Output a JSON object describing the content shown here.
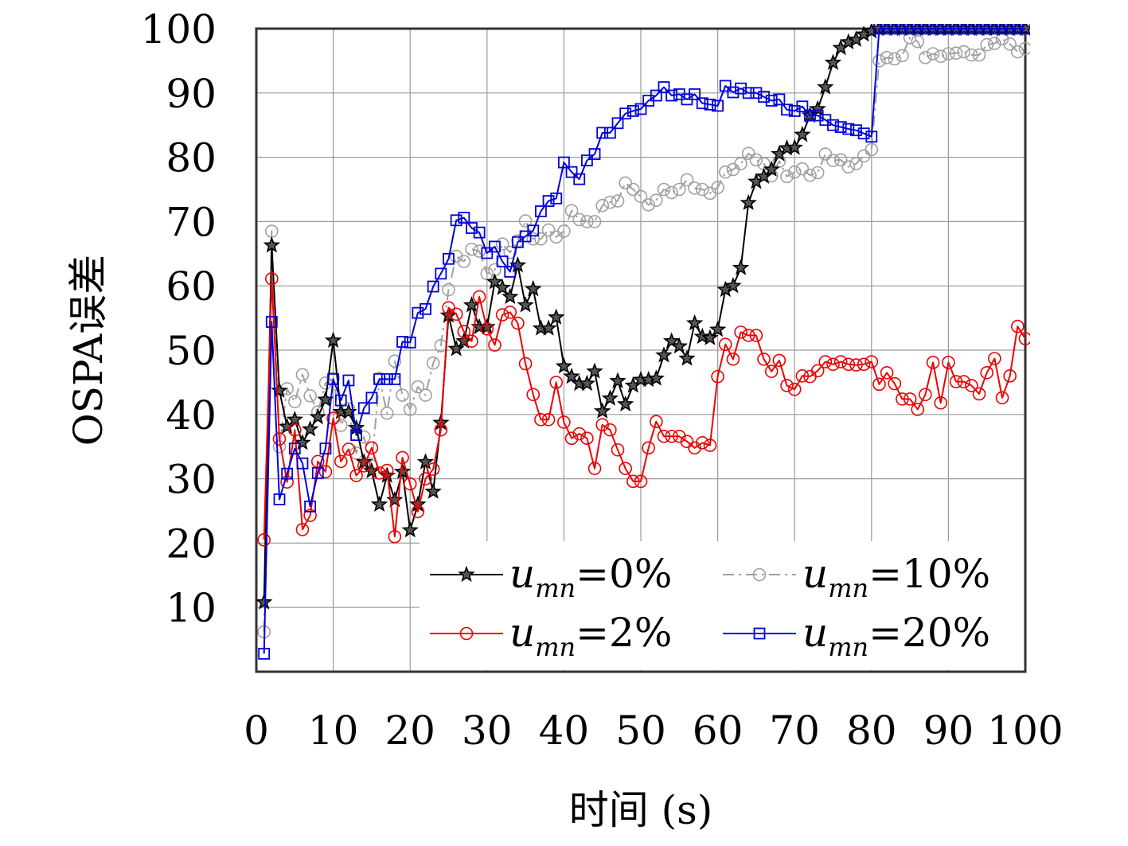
{
  "chart_data": {
    "type": "line",
    "title": "",
    "xlabel": "时间 (s)",
    "ylabel": "OSPA误差",
    "xlim": [
      0,
      100
    ],
    "ylim": [
      0,
      100
    ],
    "xticks": [
      "0",
      "10",
      "20",
      "30",
      "40",
      "50",
      "60",
      "70",
      "80",
      "90",
      "100"
    ],
    "yticks": [
      "10",
      "20",
      "30",
      "40",
      "50",
      "60",
      "70",
      "80",
      "90",
      "100"
    ],
    "grid": true,
    "legend_position": "bottom-right",
    "series": [
      {
        "name": "u_mn=0%",
        "legend": {
          "base": "u",
          "sub": "mn",
          "value": "=0%"
        },
        "color": "#000000",
        "marker": "star",
        "dash": "solid",
        "x": [
          1,
          2,
          3,
          4,
          5,
          6,
          7,
          8,
          9,
          10,
          11,
          12,
          13,
          14,
          15,
          16,
          17,
          18,
          19,
          20,
          21,
          22,
          23,
          24,
          25,
          26,
          27,
          28,
          29,
          30,
          31,
          32,
          33,
          34,
          35,
          36,
          37,
          38,
          39,
          40,
          41,
          42,
          43,
          44,
          45,
          46,
          47,
          48,
          49,
          50,
          51,
          52,
          53,
          54,
          55,
          56,
          57,
          58,
          59,
          60,
          61,
          62,
          63,
          64,
          65,
          66,
          67,
          68,
          69,
          70,
          71,
          72,
          73,
          74,
          75,
          76,
          77,
          78,
          79,
          80,
          81,
          82,
          83,
          84,
          85,
          86,
          87,
          88,
          89,
          90,
          91,
          92,
          93,
          94,
          95,
          96,
          97,
          98,
          99,
          100
        ],
        "y": [
          10.8,
          66.3,
          43.7,
          38.1,
          39.2,
          35.6,
          37.7,
          39.6,
          42.3,
          51.5,
          40.4,
          40.4,
          37.9,
          32.6,
          31.2,
          26.0,
          30.5,
          26.7,
          31.1,
          22.0,
          26.0,
          32.6,
          28.0,
          38.7,
          55.4,
          50.2,
          51.4,
          57.0,
          53.6,
          53.6,
          60.6,
          59.7,
          58.3,
          63.2,
          57.0,
          59.5,
          53.4,
          53.4,
          55.1,
          47.5,
          45.9,
          44.8,
          44.8,
          46.7,
          40.5,
          42.5,
          45.2,
          41.6,
          44.5,
          45.4,
          45.4,
          45.6,
          49.2,
          51.4,
          50.6,
          48.7,
          54.2,
          52.1,
          51.9,
          53.2,
          59.4,
          60.0,
          62.8,
          72.9,
          76.2,
          77.0,
          78.1,
          80.5,
          81.4,
          81.5,
          83.5,
          86.5,
          87.5,
          90.9,
          94.7,
          97.0,
          97.9,
          98.3,
          99.1,
          99.6,
          100,
          100,
          100,
          100,
          100,
          100,
          100,
          100,
          100,
          100,
          100,
          100,
          100,
          100,
          100,
          100,
          100,
          100,
          100,
          100
        ]
      },
      {
        "name": "u_mn=2%",
        "legend": {
          "base": "u",
          "sub": "mn",
          "value": "=2%"
        },
        "color": "#ee0000",
        "marker": "circle",
        "dash": "solid",
        "x": [
          1,
          2,
          3,
          4,
          5,
          6,
          7,
          8,
          9,
          10,
          11,
          12,
          13,
          14,
          15,
          16,
          17,
          18,
          19,
          20,
          21,
          22,
          23,
          24,
          25,
          26,
          27,
          28,
          29,
          30,
          31,
          32,
          33,
          34,
          35,
          36,
          37,
          38,
          39,
          40,
          41,
          42,
          43,
          44,
          45,
          46,
          47,
          48,
          49,
          50,
          51,
          52,
          53,
          54,
          55,
          56,
          57,
          58,
          59,
          60,
          61,
          62,
          63,
          64,
          65,
          66,
          67,
          68,
          69,
          70,
          71,
          72,
          73,
          74,
          75,
          76,
          77,
          78,
          79,
          80,
          81,
          82,
          83,
          84,
          85,
          86,
          87,
          88,
          89,
          90,
          91,
          92,
          93,
          94,
          95,
          96,
          97,
          98,
          99,
          100
        ],
        "y": [
          20.5,
          61.1,
          36.2,
          29.5,
          37.6,
          22.1,
          24.3,
          32.7,
          31.1,
          39.4,
          32.7,
          34.6,
          30.5,
          32.0,
          34.8,
          30.9,
          31.3,
          21.0,
          33.3,
          29.2,
          24.9,
          30.0,
          31.5,
          37.6,
          56.6,
          55.6,
          52.9,
          51.4,
          58.3,
          53.3,
          50.8,
          55.5,
          55.9,
          54.2,
          47.9,
          43.1,
          39.2,
          39.2,
          45.0,
          38.8,
          36.3,
          37.0,
          36.3,
          31.6,
          38.4,
          37.6,
          34.5,
          31.6,
          29.6,
          29.6,
          34.8,
          38.9,
          36.6,
          36.6,
          36.6,
          35.8,
          34.8,
          35.6,
          35.2,
          45.9,
          50.9,
          48.6,
          52.8,
          52.3,
          52.3,
          48.6,
          46.7,
          48.4,
          44.5,
          43.9,
          46.0,
          45.9,
          46.8,
          48.2,
          47.8,
          48.2,
          47.8,
          47.7,
          47.8,
          48.2,
          44.7,
          46.5,
          44.8,
          42.4,
          42.4,
          40.8,
          43.1,
          48.1,
          41.8,
          48.1,
          45.1,
          45.1,
          44.5,
          43.2,
          46.5,
          48.7,
          42.6,
          46.0,
          53.7,
          51.8
        ]
      },
      {
        "name": "u_mn=10%",
        "legend": {
          "base": "u",
          "sub": "mn",
          "value": "=10%"
        },
        "color": "#a0a0a0",
        "marker": "circle",
        "dash": "dashdot",
        "x": [
          1,
          2,
          3,
          4,
          5,
          6,
          7,
          8,
          9,
          10,
          11,
          12,
          13,
          14,
          15,
          16,
          17,
          18,
          19,
          20,
          21,
          22,
          23,
          24,
          25,
          26,
          27,
          28,
          29,
          30,
          31,
          32,
          33,
          34,
          35,
          36,
          37,
          38,
          39,
          40,
          41,
          42,
          43,
          44,
          45,
          46,
          47,
          48,
          49,
          50,
          51,
          52,
          53,
          54,
          55,
          56,
          57,
          58,
          59,
          60,
          61,
          62,
          63,
          64,
          65,
          66,
          67,
          68,
          69,
          70,
          71,
          72,
          73,
          74,
          75,
          76,
          77,
          78,
          79,
          80,
          81,
          82,
          83,
          84,
          85,
          86,
          87,
          88,
          89,
          90,
          91,
          92,
          93,
          94,
          95,
          96,
          97,
          98,
          99,
          100
        ],
        "y": [
          6.2,
          68.5,
          35.0,
          44.0,
          42.0,
          46.2,
          42.9,
          40.4,
          44.9,
          45.6,
          38.3,
          40.9,
          34.0,
          36.5,
          32.0,
          45.6,
          40.2,
          48.3,
          43.0,
          40.8,
          44.3,
          43.0,
          48.0,
          50.7,
          59.4,
          64.6,
          63.8,
          65.7,
          65.4,
          61.9,
          62.5,
          66.5,
          65.2,
          67.0,
          70.1,
          67.3,
          67.3,
          68.7,
          67.6,
          68.5,
          71.7,
          70.3,
          70.0,
          70.0,
          72.5,
          73.0,
          73.2,
          76.0,
          75.0,
          73.9,
          72.6,
          73.3,
          75.0,
          74.5,
          75.0,
          76.5,
          75.2,
          75.0,
          74.4,
          75.3,
          77.7,
          78.1,
          79.0,
          80.6,
          79.6,
          79.0,
          77.1,
          79.4,
          77.0,
          77.7,
          78.2,
          77.2,
          77.6,
          80.5,
          79.5,
          79.6,
          78.5,
          79.0,
          80.2,
          81.2,
          95.0,
          95.5,
          95.3,
          95.8,
          98.6,
          98.0,
          95.5,
          96.1,
          95.7,
          96.1,
          96.2,
          96.4,
          95.9,
          95.9,
          97.5,
          97.7,
          98.4,
          97.6,
          96.4,
          96.9
        ]
      },
      {
        "name": "u_mn=20%",
        "legend": {
          "base": "u",
          "sub": "mn",
          "value": "=20%"
        },
        "color": "#0000dd",
        "marker": "square",
        "dash": "solid",
        "x": [
          1,
          2,
          3,
          4,
          5,
          6,
          7,
          8,
          9,
          10,
          11,
          12,
          13,
          14,
          15,
          16,
          17,
          18,
          19,
          20,
          21,
          22,
          23,
          24,
          25,
          26,
          27,
          28,
          29,
          30,
          31,
          32,
          33,
          34,
          35,
          36,
          37,
          38,
          39,
          40,
          41,
          42,
          43,
          44,
          45,
          46,
          47,
          48,
          49,
          50,
          51,
          52,
          53,
          54,
          55,
          56,
          57,
          58,
          59,
          60,
          61,
          62,
          63,
          64,
          65,
          66,
          67,
          68,
          69,
          70,
          71,
          72,
          73,
          74,
          75,
          76,
          77,
          78,
          79,
          80,
          81,
          82,
          83,
          84,
          85,
          86,
          87,
          88,
          89,
          90,
          91,
          92,
          93,
          94,
          95,
          96,
          97,
          98,
          99,
          100
        ],
        "y": [
          2.8,
          54.4,
          26.8,
          30.8,
          34.7,
          32.4,
          25.7,
          30.9,
          34.7,
          45.5,
          42.2,
          45.3,
          36.8,
          41.0,
          42.6,
          45.5,
          45.5,
          45.5,
          51.3,
          51.2,
          55.8,
          56.4,
          59.9,
          61.9,
          64.2,
          70.2,
          70.6,
          69.0,
          68.3,
          65.1,
          66.1,
          63.8,
          62.2,
          66.8,
          67.7,
          68.6,
          71.6,
          73.2,
          73.6,
          79.2,
          77.7,
          76.6,
          79.5,
          80.5,
          83.8,
          83.8,
          85.3,
          86.8,
          87.2,
          87.5,
          88.8,
          89.6,
          90.9,
          89.6,
          89.8,
          89.0,
          89.8,
          88.4,
          88.2,
          88.0,
          91.1,
          90.1,
          90.7,
          90.0,
          90.0,
          89.4,
          88.8,
          89.0,
          87.4,
          87.2,
          87.9,
          86.5,
          86.5,
          85.8,
          85.0,
          84.7,
          84.4,
          84.2,
          83.7,
          83.2,
          100,
          100,
          100,
          100,
          100,
          100,
          100,
          100,
          100,
          100,
          100,
          100,
          100,
          100,
          100,
          100,
          100,
          100,
          100,
          100
        ]
      }
    ]
  }
}
